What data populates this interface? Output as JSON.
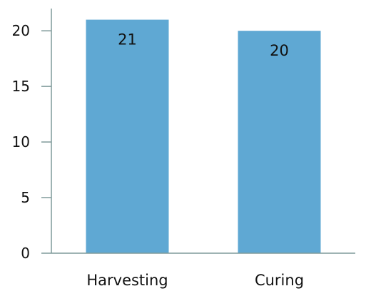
{
  "chart_data": {
    "type": "bar",
    "title": "",
    "xlabel": "",
    "ylabel": "",
    "categories": [
      "Harvesting",
      "Curing"
    ],
    "values": [
      21,
      20
    ],
    "data_labels": [
      "21",
      "20"
    ],
    "ylim": [
      0,
      22
    ],
    "yticks": [
      0,
      5,
      10,
      15,
      20
    ],
    "ytick_labels": [
      "0",
      "5",
      "10",
      "15",
      "20"
    ],
    "grid": false,
    "legend": "none",
    "bar_color": "#5fa8d3",
    "axis_color": "#7f9a9a"
  }
}
